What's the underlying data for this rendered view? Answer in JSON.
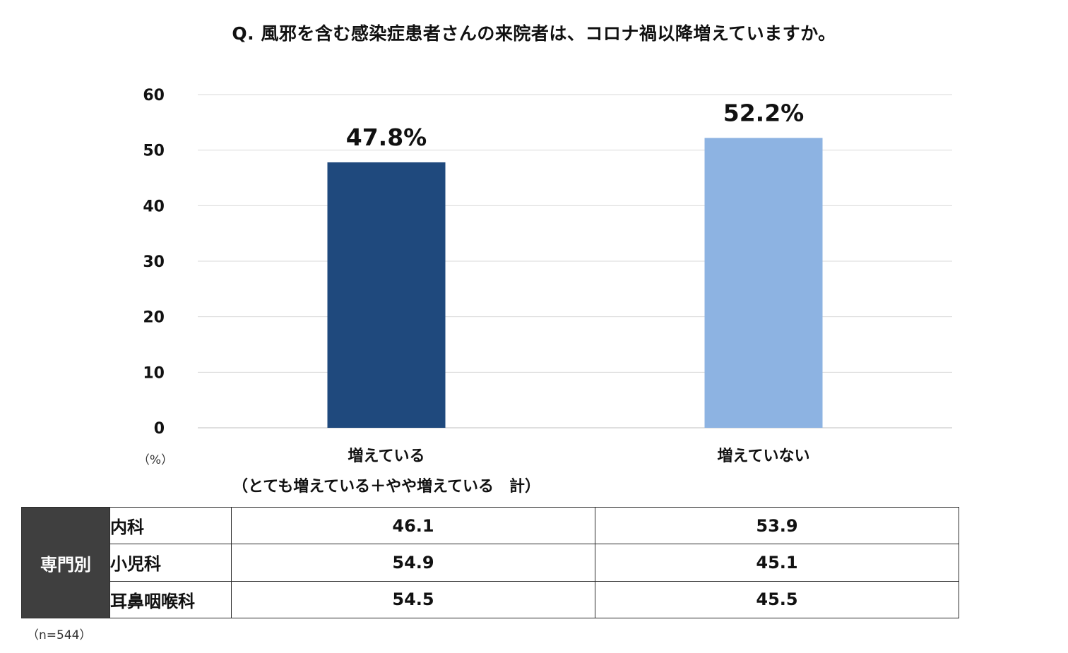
{
  "chart_data": {
    "type": "bar",
    "title": "Q. 風邪を含む感染症患者さんの来院者は、コロナ禍以降増えていますか。",
    "categories": [
      [
        "増えている",
        "（とても増えている＋やや増えている　計）"
      ],
      [
        "増えていない"
      ]
    ],
    "values": [
      47.8,
      52.2
    ],
    "data_labels": [
      "47.8%",
      "52.2%"
    ],
    "colors": [
      "#1f497d",
      "#8db3e2"
    ],
    "ylim": [
      0,
      60
    ],
    "yticks": [
      "0",
      "10",
      "20",
      "30",
      "40",
      "50",
      "60"
    ],
    "ylabel": "（%）",
    "grid": true
  },
  "table": {
    "group_label": "専門別",
    "rows": [
      {
        "label": "内科",
        "values": [
          "46.1",
          "53.9"
        ]
      },
      {
        "label": "小児科",
        "values": [
          "54.9",
          "45.1"
        ]
      },
      {
        "label": "耳鼻咽喉科",
        "values": [
          "54.5",
          "45.5"
        ]
      }
    ]
  },
  "note": "（n=544）"
}
